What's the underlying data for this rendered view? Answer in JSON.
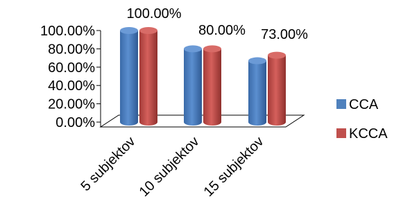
{
  "chart_data": {
    "type": "bar",
    "categories": [
      "5 subjektov",
      "10 subjektov",
      "15 subjektov"
    ],
    "series": [
      {
        "name": "CCA",
        "values": [
          100,
          80,
          67
        ],
        "color": "#4f81bd"
      },
      {
        "name": "KCCA",
        "values": [
          100,
          80,
          73
        ],
        "color": "#c0504d"
      }
    ],
    "data_labels": [
      "100.00%",
      "80.00%",
      "73.00%"
    ],
    "ylim": [
      0,
      100
    ],
    "y_ticks": [
      "0.00%",
      "20.00%",
      "40.00%",
      "60.00%",
      "80.00%",
      "100.00%"
    ],
    "legend_placement": "right",
    "style": "3d-cylinder"
  }
}
